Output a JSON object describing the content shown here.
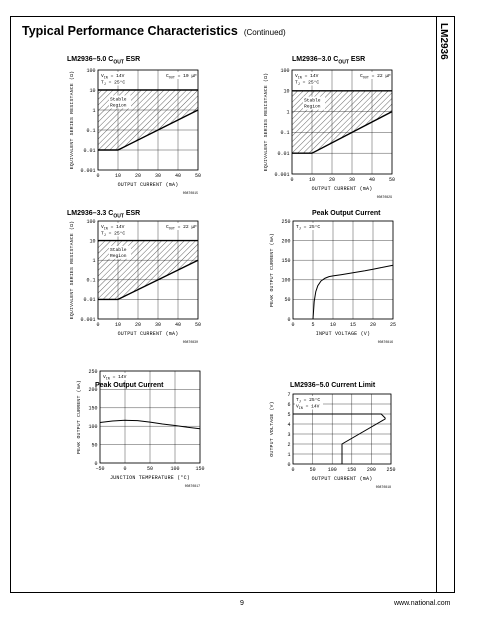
{
  "section": {
    "title": "Typical Performance Characteristics",
    "continued": "(Continued)"
  },
  "side_label": "LM2936",
  "footer": {
    "page": "9",
    "url": "www.national.com"
  },
  "chart_data": [
    {
      "id": "c1",
      "type": "area",
      "title": "LM2936–5.0 C",
      "title_sub": "OUT",
      "title_suffix": " ESR",
      "xlabel": "OUTPUT CURRENT (mA)",
      "ylabel": "EQUIVALENT SERIES RESISTANCE (Ω)",
      "yscale": "log",
      "xlim": [
        0,
        50
      ],
      "ylim": [
        0.001,
        100
      ],
      "xticks": [
        "0",
        "10",
        "20",
        "30",
        "40",
        "50"
      ],
      "yticks": [
        "0.001",
        "0.01",
        "0.1",
        "1",
        "10",
        "100"
      ],
      "boundary_upper": 10,
      "boundary_lower": {
        "x": [
          0,
          10,
          50
        ],
        "y": [
          0.01,
          0.01,
          1
        ]
      },
      "region_label": [
        "Stable",
        "Region"
      ],
      "ann": [
        {
          "m": "V",
          "s": "IN",
          "t": " = 14V"
        },
        {
          "m": "T",
          "s": "J",
          "t": " = 25°C"
        }
      ],
      "ann_right": {
        "m": "C",
        "s": "OUT",
        "t": " = 10 μF"
      },
      "code": "00870815"
    },
    {
      "id": "c2",
      "type": "area",
      "title": "LM2936–3.0 C",
      "title_sub": "OUT",
      "title_suffix": " ESR",
      "xlabel": "OUTPUT CURRENT (mA)",
      "ylabel": "EQUIVALENT SERIES RESISTANCE (Ω)",
      "yscale": "log",
      "xlim": [
        0,
        50
      ],
      "ylim": [
        0.001,
        100
      ],
      "xticks": [
        "0",
        "10",
        "20",
        "30",
        "40",
        "50"
      ],
      "yticks": [
        "0.001",
        "0.01",
        "0.1",
        "1",
        "10",
        "100"
      ],
      "boundary_upper": 10,
      "boundary_lower": {
        "x": [
          0,
          10,
          50
        ],
        "y": [
          0.01,
          0.01,
          1
        ]
      },
      "region_label": [
        "Stable",
        "Region"
      ],
      "ann": [
        {
          "m": "V",
          "s": "IN",
          "t": " = 14V"
        },
        {
          "m": "T",
          "s": "J",
          "t": " = 25°C"
        }
      ],
      "ann_right": {
        "m": "C",
        "s": "OUT",
        "t": " = 22 μF"
      },
      "code": "00870829"
    },
    {
      "id": "c3",
      "type": "area",
      "title": "LM2936–3.3 C",
      "title_sub": "OUT",
      "title_suffix": " ESR",
      "xlabel": "OUTPUT CURRENT (mA)",
      "ylabel": "EQUIVALENT SERIES RESISTANCE (Ω)",
      "yscale": "log",
      "xlim": [
        0,
        50
      ],
      "ylim": [
        0.001,
        100
      ],
      "xticks": [
        "0",
        "10",
        "20",
        "30",
        "40",
        "50"
      ],
      "yticks": [
        "0.001",
        "0.01",
        "0.1",
        "1",
        "10",
        "100"
      ],
      "boundary_upper": 10,
      "boundary_lower": {
        "x": [
          0,
          10,
          50
        ],
        "y": [
          0.01,
          0.01,
          1
        ]
      },
      "region_label": [
        "Stable",
        "Region"
      ],
      "ann": [
        {
          "m": "V",
          "s": "IN",
          "t": " = 14V"
        },
        {
          "m": "T",
          "s": "J",
          "t": " = 25°C"
        }
      ],
      "ann_right": {
        "m": "C",
        "s": "OUT",
        "t": " = 22 μF"
      },
      "code": "00870830"
    },
    {
      "id": "c4",
      "type": "line",
      "title": "Peak Output Current",
      "xlabel": "INPUT VOLTAGE (V)",
      "ylabel": "PEAK OUTPUT CURRENT (mA)",
      "xlim": [
        0,
        25
      ],
      "ylim": [
        0,
        250
      ],
      "xticks": [
        "0",
        "5",
        "10",
        "15",
        "20",
        "25"
      ],
      "yticks": [
        "0",
        "50",
        "100",
        "150",
        "200",
        "250"
      ],
      "ann": [
        {
          "m": "T",
          "s": "J",
          "t": " = 25°C"
        }
      ],
      "x": [
        5.0,
        5.3,
        5.7,
        6.2,
        7.0,
        8.0,
        9.0,
        10,
        12,
        15,
        18,
        20,
        22,
        25
      ],
      "y": [
        0,
        45,
        70,
        85,
        97,
        104,
        108,
        110,
        113,
        118,
        123,
        127,
        131,
        137
      ],
      "code": "00870816"
    },
    {
      "id": "c5",
      "type": "line",
      "title": "Peak Output Current",
      "xlabel": "JUNCTION TEMPERATURE (°C)",
      "ylabel": "PEAK OUTPUT CURRENT (mA)",
      "xlim": [
        -50,
        150
      ],
      "ylim": [
        0,
        250
      ],
      "xticks": [
        "−50",
        "0",
        "50",
        "100",
        "150"
      ],
      "yticks": [
        "0",
        "50",
        "100",
        "150",
        "200",
        "250"
      ],
      "ann": [
        {
          "m": "V",
          "s": "IN",
          "t": " = 14V"
        }
      ],
      "x": [
        -50,
        -25,
        0,
        25,
        50,
        75,
        100,
        125,
        150
      ],
      "y": [
        110,
        114,
        116,
        115,
        111,
        106,
        102,
        97,
        93
      ],
      "code": "00870817"
    },
    {
      "id": "c6",
      "type": "line",
      "title": "LM2936–5.0 Current Limit",
      "xlabel": "OUTPUT CURRENT (mA)",
      "ylabel": "OUTPUT VOLTAGE (V)",
      "xlim": [
        0,
        250
      ],
      "ylim": [
        0,
        7
      ],
      "xticks": [
        "0",
        "50",
        "100",
        "150",
        "200",
        "250"
      ],
      "yticks": [
        "0",
        "1",
        "2",
        "3",
        "4",
        "5",
        "6",
        "7"
      ],
      "ann": [
        {
          "m": "T",
          "s": "J",
          "t": " = 25°C"
        },
        {
          "m": "V",
          "s": "IN",
          "t": " = 14V"
        }
      ],
      "x": [
        0,
        225,
        235,
        235,
        125,
        125
      ],
      "y": [
        5,
        5,
        4.6,
        4.5,
        2,
        0
      ],
      "code": "00870818"
    }
  ]
}
